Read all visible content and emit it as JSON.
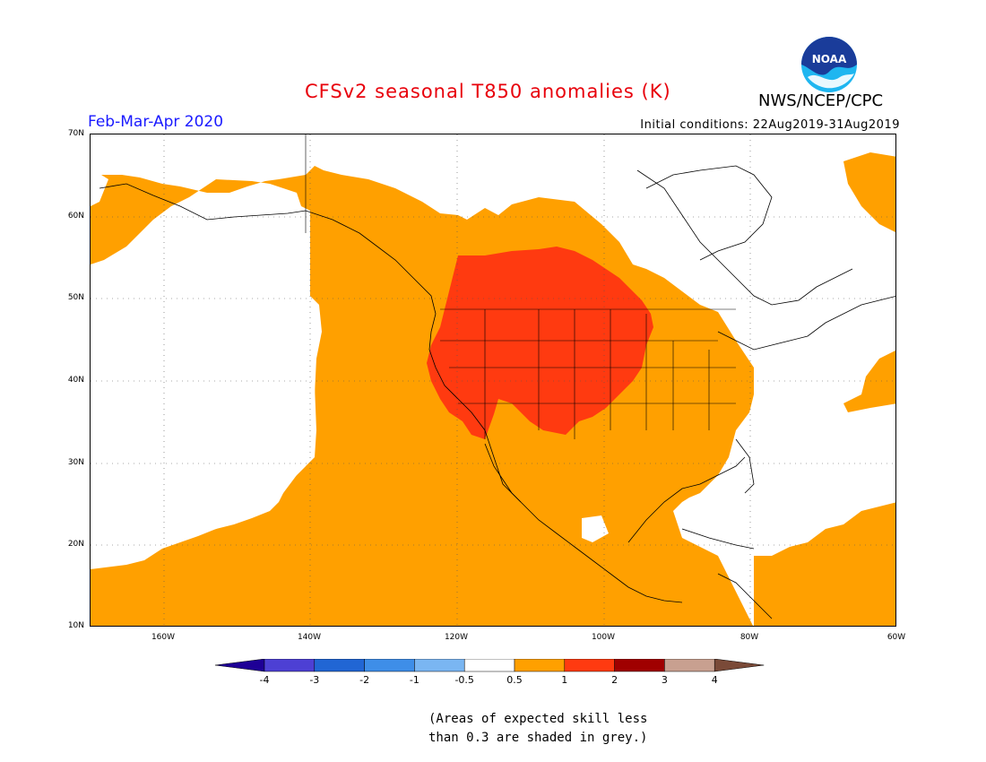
{
  "header": {
    "title": "CFSv2 seasonal T850 anomalies (K)",
    "period": "Feb-Mar-Apr 2020",
    "initial_conditions": "Initial conditions: 22Aug2019-31Aug2019",
    "organization": "NWS/NCEP/CPC",
    "logo_text": "NOAA"
  },
  "map": {
    "projection": "lat-lon",
    "lat_range": [
      10,
      70
    ],
    "lon_range": [
      "170W",
      "60W"
    ],
    "lat_labels": [
      "70N",
      "60N",
      "50N",
      "40N",
      "30N",
      "20N",
      "10N"
    ],
    "lon_labels": [
      "160W",
      "140W",
      "120W",
      "100W",
      "80W",
      "60W"
    ],
    "regions": [
      {
        "name": "eastern-pacific-alaska-canada-us-mexico",
        "category": "0.5 to 1"
      },
      {
        "name": "interior-western-us",
        "category": "1 to 2"
      },
      {
        "name": "central-pacific",
        "category": "-0.5 to 0.5"
      },
      {
        "name": "northeastern-canada-greenland",
        "category": "-0.5 to 0.5"
      }
    ]
  },
  "legend": {
    "labels": [
      "-4",
      "-3",
      "-2",
      "-1",
      "-0.5",
      "0.5",
      "1",
      "2",
      "3",
      "4"
    ],
    "colors": [
      "#1e0096",
      "#4d40d4",
      "#2166d4",
      "#3e8ee8",
      "#7ab6f2",
      "#ffffff",
      "#ffa000",
      "#ff3a10",
      "#a00000",
      "#c8a090",
      "#7a4a38"
    ]
  },
  "footnote": {
    "line1": "(Areas of expected skill less",
    "line2": "than 0.3 are shaded in grey.)"
  }
}
